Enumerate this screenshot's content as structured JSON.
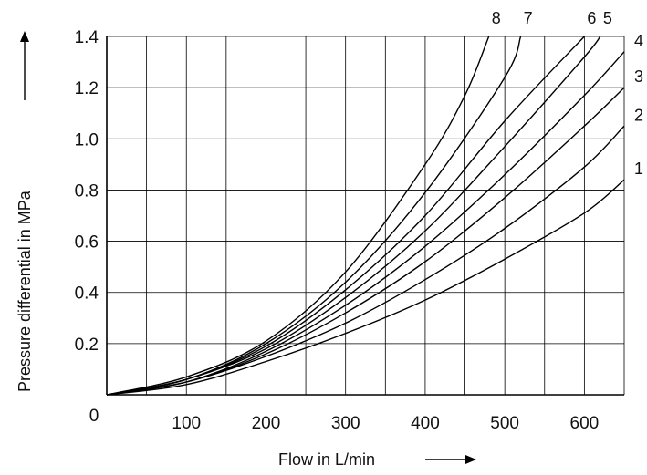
{
  "chart_data": {
    "type": "line",
    "xlabel": "Flow in L/min",
    "ylabel": "Pressure differential in MPa",
    "xlim": [
      0,
      650
    ],
    "ylim": [
      0,
      1.4
    ],
    "xticks": [
      0,
      100,
      200,
      300,
      400,
      500,
      600
    ],
    "xtick_labels": [
      "0",
      "100",
      "200",
      "300",
      "400",
      "500",
      "600"
    ],
    "yticks": [
      0.2,
      0.4,
      0.6,
      0.8,
      1.0,
      1.2,
      1.4
    ],
    "ytick_labels": [
      "0.2",
      "0.4",
      "0.6",
      "0.8",
      "1.0",
      "1.2",
      "1.4"
    ],
    "grid": true,
    "series": [
      {
        "name": "1",
        "points": [
          [
            0,
            0
          ],
          [
            100,
            0.04
          ],
          [
            200,
            0.13
          ],
          [
            300,
            0.24
          ],
          [
            400,
            0.37
          ],
          [
            500,
            0.53
          ],
          [
            600,
            0.71
          ],
          [
            650,
            0.84
          ]
        ]
      },
      {
        "name": "2",
        "points": [
          [
            0,
            0
          ],
          [
            100,
            0.05
          ],
          [
            200,
            0.15
          ],
          [
            300,
            0.28
          ],
          [
            400,
            0.45
          ],
          [
            500,
            0.65
          ],
          [
            600,
            0.89
          ],
          [
            650,
            1.05
          ]
        ]
      },
      {
        "name": "3",
        "points": [
          [
            0,
            0
          ],
          [
            100,
            0.05
          ],
          [
            200,
            0.16
          ],
          [
            300,
            0.32
          ],
          [
            400,
            0.52
          ],
          [
            500,
            0.77
          ],
          [
            600,
            1.05
          ],
          [
            650,
            1.2
          ]
        ]
      },
      {
        "name": "4",
        "points": [
          [
            0,
            0
          ],
          [
            100,
            0.05
          ],
          [
            200,
            0.17
          ],
          [
            300,
            0.35
          ],
          [
            400,
            0.58
          ],
          [
            500,
            0.86
          ],
          [
            600,
            1.17
          ],
          [
            650,
            1.34
          ]
        ]
      },
      {
        "name": "5",
        "points": [
          [
            0,
            0
          ],
          [
            100,
            0.06
          ],
          [
            200,
            0.18
          ],
          [
            300,
            0.38
          ],
          [
            400,
            0.64
          ],
          [
            500,
            0.97
          ],
          [
            600,
            1.32
          ],
          [
            620,
            1.4
          ]
        ]
      },
      {
        "name": "6",
        "points": [
          [
            0,
            0
          ],
          [
            100,
            0.06
          ],
          [
            200,
            0.19
          ],
          [
            300,
            0.41
          ],
          [
            400,
            0.7
          ],
          [
            500,
            1.07
          ],
          [
            600,
            1.4
          ]
        ]
      },
      {
        "name": "7",
        "points": [
          [
            0,
            0
          ],
          [
            100,
            0.06
          ],
          [
            200,
            0.2
          ],
          [
            300,
            0.44
          ],
          [
            400,
            0.79
          ],
          [
            500,
            1.24
          ],
          [
            520,
            1.4
          ]
        ]
      },
      {
        "name": "8",
        "points": [
          [
            0,
            0
          ],
          [
            100,
            0.07
          ],
          [
            200,
            0.21
          ],
          [
            300,
            0.48
          ],
          [
            400,
            0.9
          ],
          [
            450,
            1.17
          ],
          [
            480,
            1.4
          ]
        ]
      }
    ]
  }
}
